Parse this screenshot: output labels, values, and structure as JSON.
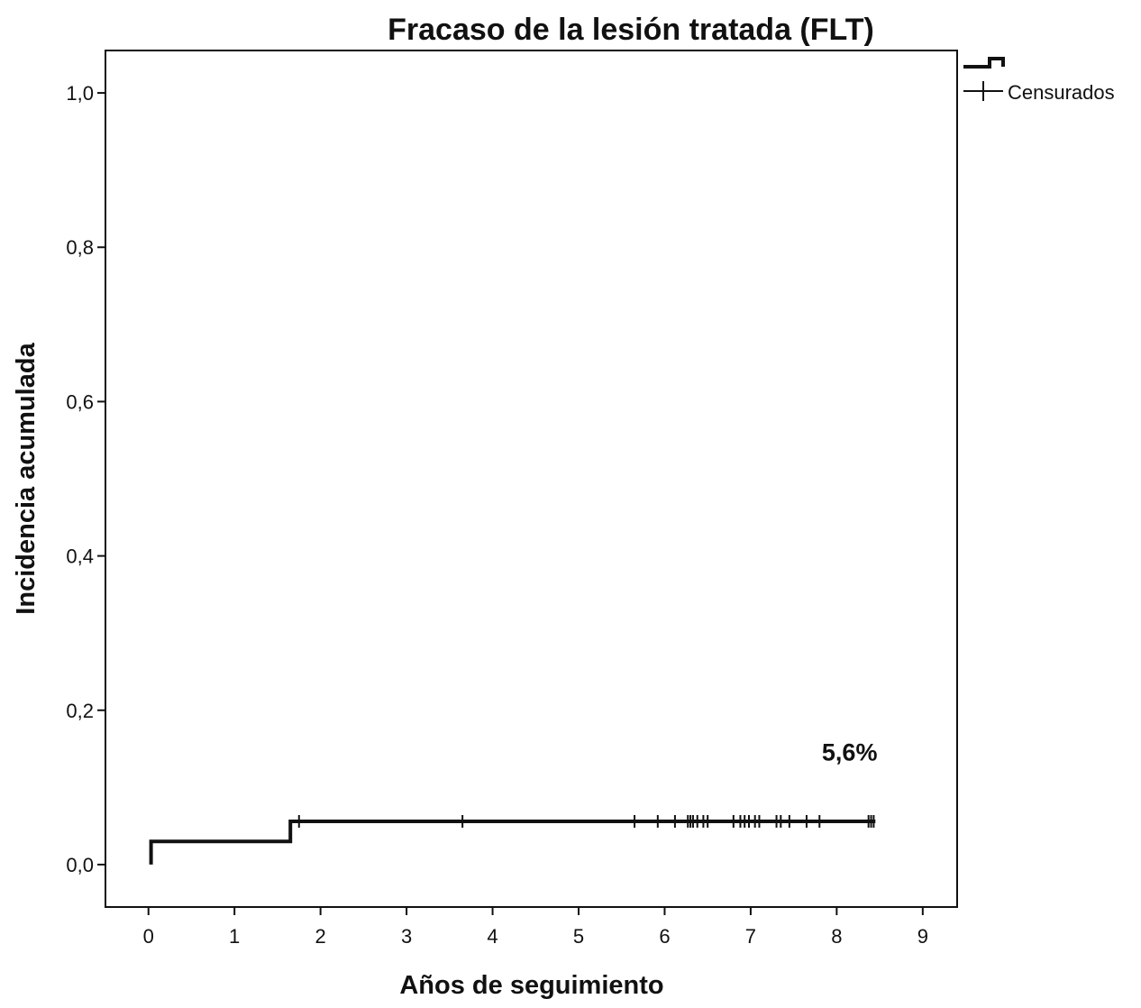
{
  "chart_data": {
    "type": "line",
    "title": "Fracaso de la lesión tratada (FLT)",
    "xlabel": "Años de seguimiento",
    "ylabel": "Incidencia acumulada",
    "xlim": [
      -0.5,
      9.4
    ],
    "ylim": [
      -0.055,
      1.055
    ],
    "x_ticks": [
      0,
      1,
      2,
      3,
      4,
      5,
      6,
      7,
      8,
      9
    ],
    "x_tick_labels": [
      "0",
      "1",
      "2",
      "3",
      "4",
      "5",
      "6",
      "7",
      "8",
      "9"
    ],
    "y_ticks": [
      0.0,
      0.2,
      0.4,
      0.6,
      0.8,
      1.0
    ],
    "y_tick_labels": [
      "0,0",
      "0,2",
      "0,4",
      "0,6",
      "0,8",
      "1,0"
    ],
    "grid": false,
    "legend": {
      "placement": "outside-top-right",
      "entries": [
        {
          "label": "",
          "symbol": "step"
        },
        {
          "label": "Censurados",
          "symbol": "cross"
        }
      ]
    },
    "series": [
      {
        "kind": "step",
        "steps": [
          {
            "x": 0.03,
            "y": 0.0
          },
          {
            "x": 0.03,
            "y": 0.03
          },
          {
            "x": 1.65,
            "y": 0.03
          },
          {
            "x": 1.65,
            "y": 0.056
          },
          {
            "x": 8.45,
            "y": 0.056
          }
        ]
      }
    ],
    "censored": {
      "y": 0.056,
      "x": [
        1.75,
        3.65,
        5.65,
        5.92,
        6.12,
        6.27,
        6.3,
        6.33,
        6.38,
        6.45,
        6.5,
        6.8,
        6.88,
        6.93,
        6.98,
        7.05,
        7.1,
        7.3,
        7.35,
        7.45,
        7.65,
        7.8,
        8.37,
        8.4,
        8.43
      ]
    },
    "annotations": [
      {
        "text": "5,6%",
        "x": 8.15,
        "y": 0.135
      }
    ],
    "colors": {
      "line": "#111111",
      "frame": "#111111",
      "background": "#ffffff"
    }
  }
}
